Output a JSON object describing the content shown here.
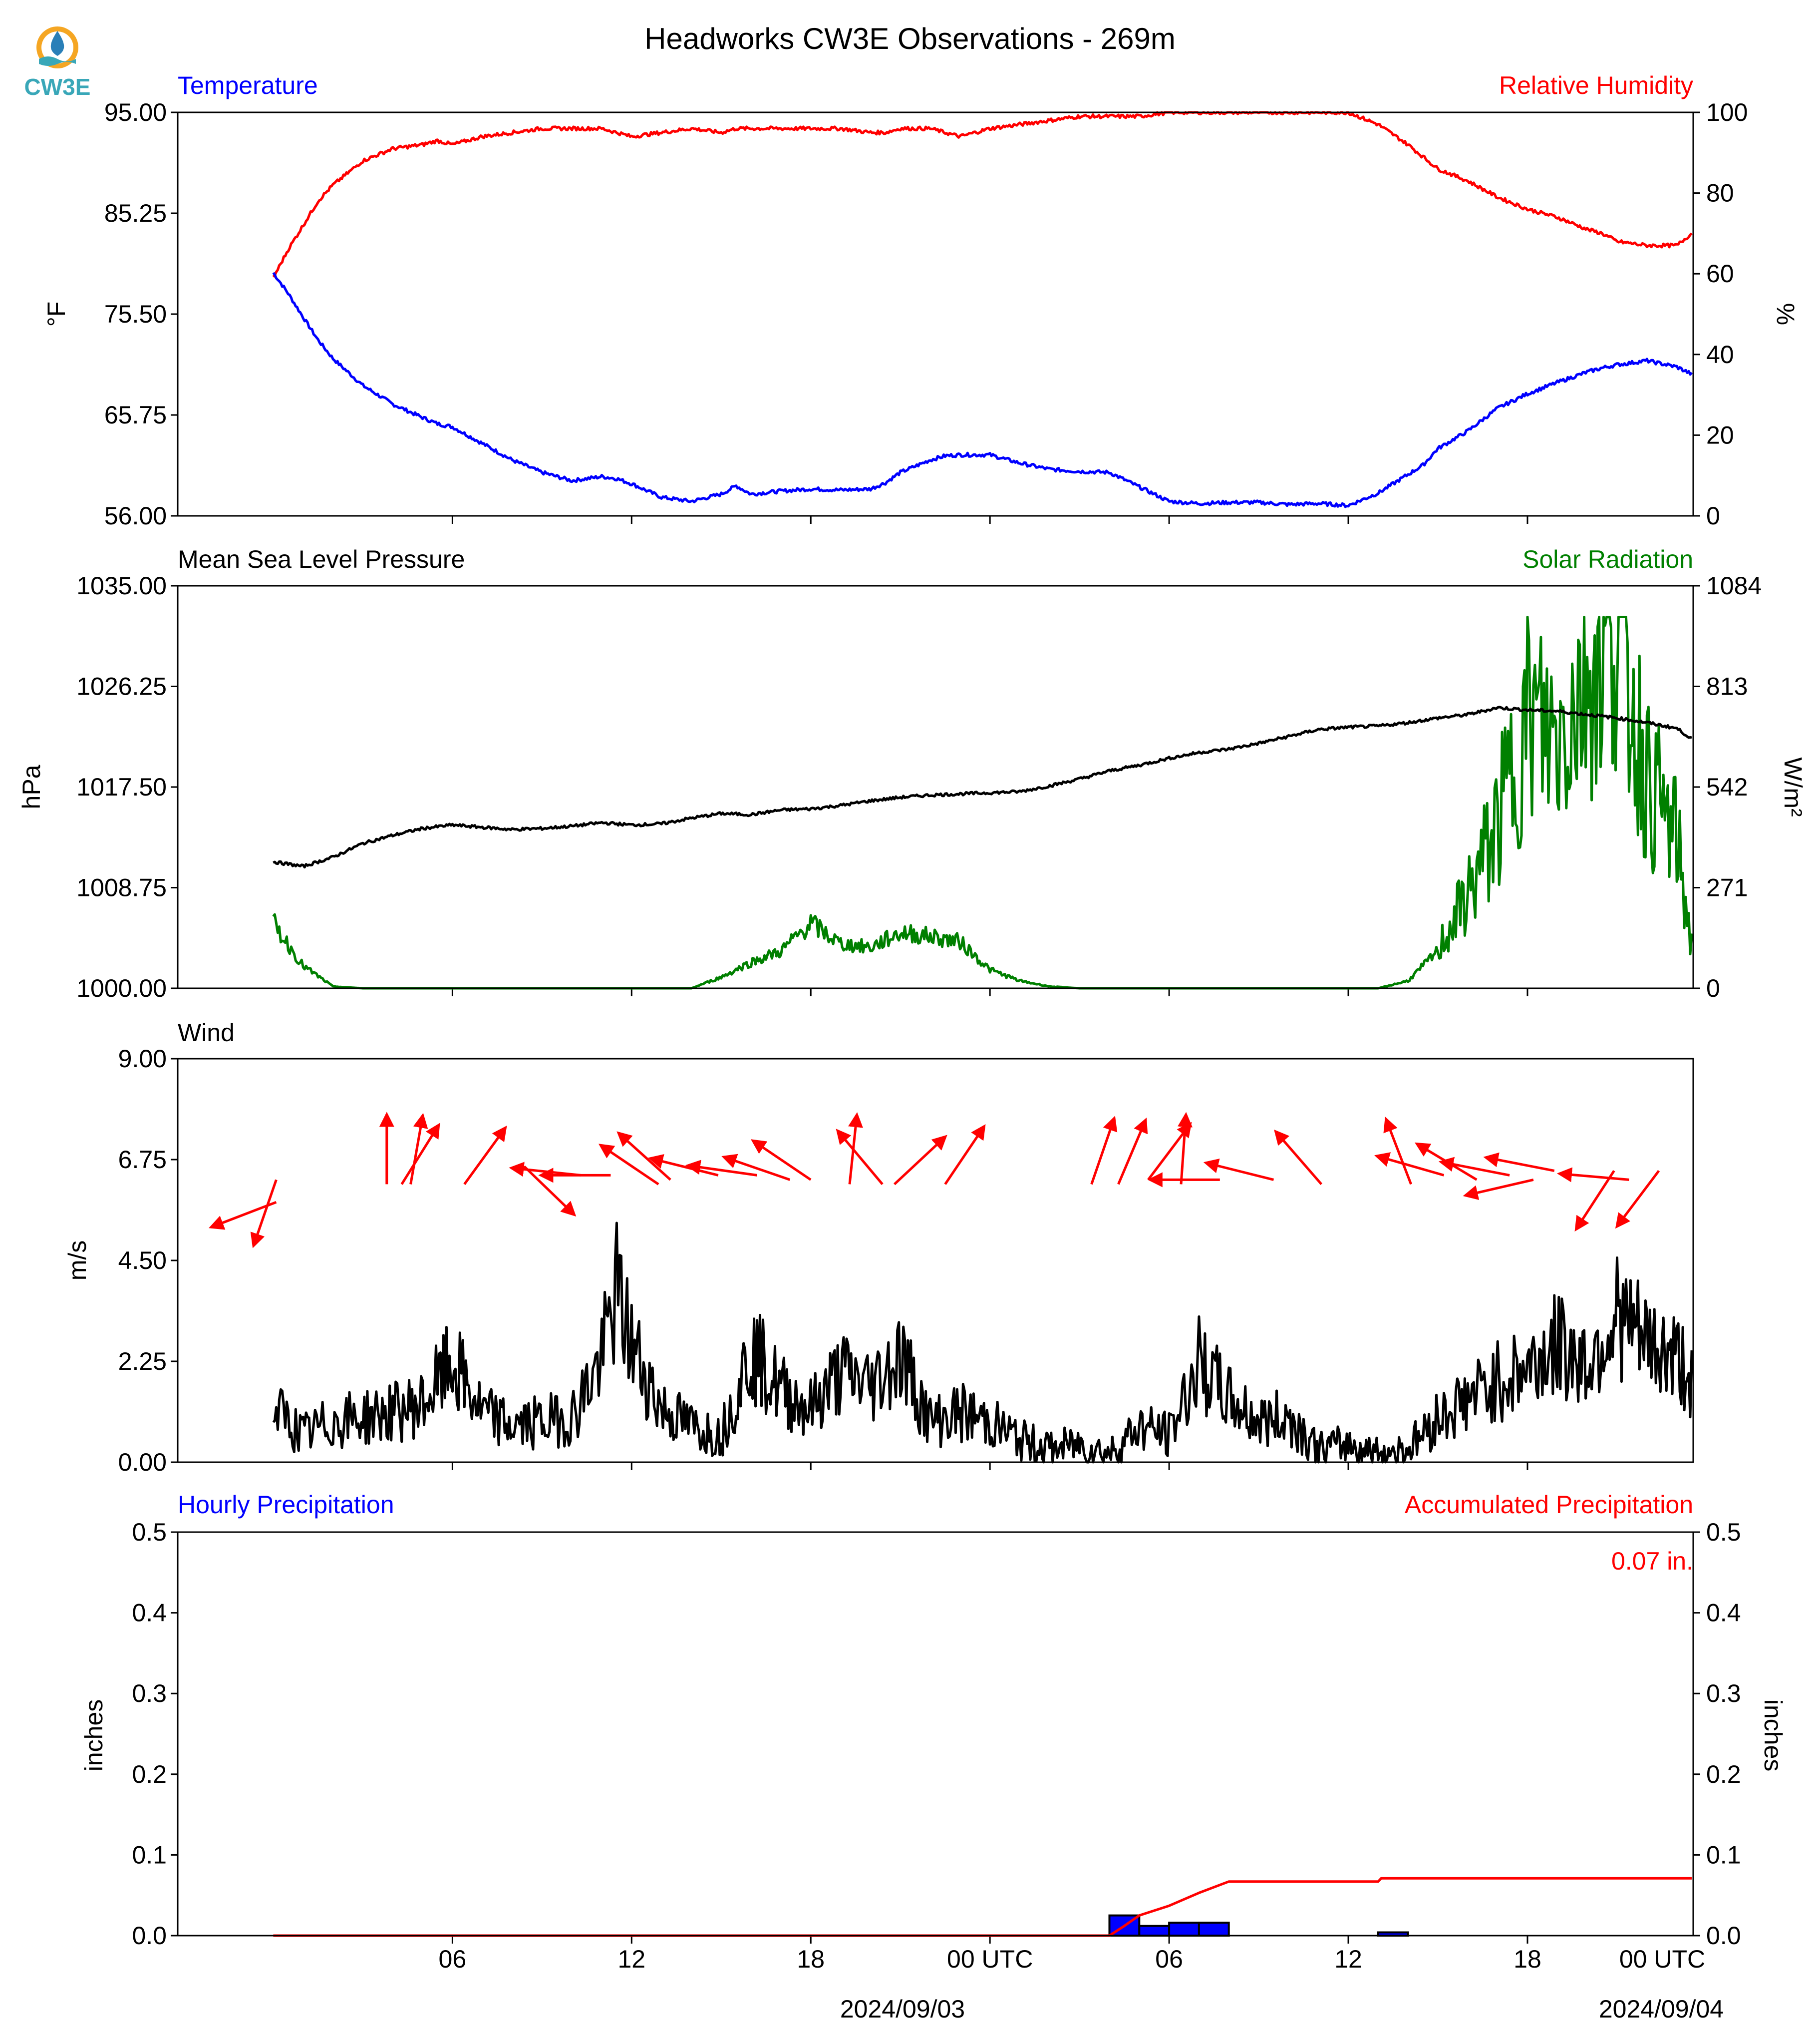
{
  "title": "Headworks CW3E Observations - 269m",
  "logo": {
    "text": "CW3E",
    "icon": "water-drop-sun-logo",
    "colors": [
      "#f5a623",
      "#2a7fb8",
      "#39a7b8"
    ]
  },
  "colors": {
    "temperature": "#0000ff",
    "humidity": "#ff0000",
    "pressure": "#000000",
    "solar": "#008000",
    "wind_speed": "#000000",
    "wind_arrow": "#ff0000",
    "hourly_bar": "#0000ff",
    "accumulated": "#ff0000"
  },
  "x_axis": {
    "tick_labels": [
      "06",
      "12",
      "18",
      "00 UTC",
      "06",
      "12",
      "18",
      "00 UTC"
    ],
    "date_labels": [
      "2024/09/03",
      "2024/09/04"
    ]
  },
  "chart_data": [
    {
      "type": "line",
      "panel": "temperature-humidity",
      "left_title": "Temperature",
      "right_title": "Relative Humidity",
      "ylabel_left": "°F",
      "ylabel_right": "%",
      "yticks_left": [
        "95.00",
        "85.25",
        "75.50",
        "65.75",
        "56.00"
      ],
      "yticks_right": [
        "100",
        "80",
        "60",
        "40",
        "20",
        "0"
      ],
      "ylim_left": [
        56,
        95
      ],
      "ylim_right": [
        0,
        100
      ],
      "x_hours": [
        0,
        0.5,
        1,
        1.5,
        2,
        3,
        4,
        5,
        5.5,
        6,
        7,
        8,
        9,
        10,
        10.5,
        11,
        11.5,
        12,
        13,
        14,
        15,
        15.5,
        16,
        17,
        18,
        19,
        20,
        20.5,
        21,
        22,
        22.5,
        23,
        24,
        25,
        26,
        27,
        28,
        29,
        30,
        31,
        32,
        33,
        34,
        35,
        36,
        37,
        38,
        38.5,
        39,
        40,
        41,
        42,
        43,
        44,
        44.5,
        45,
        46,
        47,
        47.5
      ],
      "series": [
        {
          "name": "Temperature",
          "axis": "left",
          "values": [
            79.5,
            77.5,
            75.2,
            73,
            71.2,
            68.6,
            66.8,
            65.5,
            64.9,
            64.6,
            63,
            61.4,
            60.2,
            59.4,
            59.6,
            59.8,
            59.6,
            59.1,
            57.8,
            57.4,
            58.1,
            58.9,
            58.1,
            58.4,
            58.6,
            58.5,
            58.6,
            59.2,
            60.2,
            61.4,
            61.8,
            61.9,
            61.9,
            61.1,
            60.5,
            60.3,
            60.2,
            58.8,
            57.4,
            57.2,
            57.3,
            57.3,
            57.1,
            57.2,
            57,
            58.2,
            60,
            60.9,
            62.5,
            64.2,
            66.4,
            67.8,
            68.9,
            69.9,
            70.3,
            70.6,
            71,
            70.4,
            69.7
          ]
        },
        {
          "name": "Relative Humidity",
          "axis": "right",
          "values": [
            59,
            66,
            72,
            78,
            82,
            88,
            91,
            92,
            93,
            92,
            94,
            95,
            96,
            96,
            96,
            96,
            95,
            94,
            95,
            96,
            95,
            96,
            96,
            96,
            96,
            96,
            95,
            95,
            96,
            96,
            95,
            94,
            96,
            97,
            98,
            99,
            99,
            99,
            100,
            100,
            100,
            100,
            100,
            100,
            100,
            97,
            92,
            89,
            86,
            83,
            79,
            76,
            74,
            71,
            70,
            68,
            67,
            67,
            70
          ]
        }
      ]
    },
    {
      "type": "line",
      "panel": "pressure-solar",
      "left_title": "Mean Sea Level Pressure",
      "right_title": "Solar Radiation",
      "ylabel_left": "hPa",
      "ylabel_right": "W/m²",
      "yticks_left": [
        "1035.00",
        "1026.25",
        "1017.50",
        "1008.75",
        "1000.00"
      ],
      "yticks_right": [
        "1084",
        "813",
        "542",
        "271",
        "0"
      ],
      "ylim_left": [
        1000,
        1035
      ],
      "ylim_right": [
        0,
        1084
      ],
      "x_hours": [
        0,
        1,
        2,
        3,
        4,
        5,
        6,
        7,
        8,
        9,
        10,
        11,
        12,
        13,
        14,
        15,
        16,
        17,
        18,
        19,
        20,
        21,
        22,
        23,
        24,
        25,
        26,
        27,
        28,
        29,
        30,
        31,
        32,
        33,
        34,
        35,
        36,
        37,
        38,
        39,
        40,
        41,
        42,
        43,
        44,
        45,
        46,
        47,
        47.5
      ],
      "series": [
        {
          "name": "Mean Sea Level Pressure",
          "axis": "left",
          "values": [
            1011,
            1010.6,
            1011.4,
            1012.6,
            1013.3,
            1013.9,
            1014.2,
            1014,
            1013.8,
            1013.9,
            1014.1,
            1014.4,
            1014.2,
            1014.3,
            1014.8,
            1015.2,
            1015.1,
            1015.5,
            1015.6,
            1015.9,
            1016.3,
            1016.6,
            1016.8,
            1016.9,
            1017,
            1017.1,
            1017.6,
            1018.2,
            1018.9,
            1019.4,
            1020,
            1020.5,
            1020.8,
            1021.3,
            1021.9,
            1022.5,
            1022.7,
            1022.8,
            1023.1,
            1023.5,
            1023.8,
            1024.4,
            1024.2,
            1024.1,
            1023.8,
            1023.5,
            1023.1,
            1022.6,
            1021.7
          ]
        },
        {
          "name": "Solar Radiation",
          "axis": "right",
          "values": [
            175,
            60,
            5,
            0,
            0,
            0,
            0,
            0,
            0,
            0,
            0,
            0,
            0,
            0,
            0,
            30,
            70,
            100,
            175,
            120,
            110,
            150,
            140,
            125,
            50,
            20,
            5,
            0,
            0,
            0,
            0,
            0,
            0,
            0,
            0,
            0,
            0,
            0,
            20,
            100,
            240,
            420,
            700,
            640,
            820,
            950,
            540,
            380,
            110
          ]
        }
      ]
    },
    {
      "type": "line",
      "panel": "wind",
      "left_title": "Wind",
      "ylabel_left": "m/s",
      "yticks_left": [
        "9.00",
        "6.75",
        "4.50",
        "2.25",
        "0.00"
      ],
      "ylim_left": [
        0,
        9
      ],
      "x_hours": [
        0,
        1,
        2,
        3,
        4,
        5,
        6,
        7,
        8,
        9,
        10,
        11,
        11.5,
        12,
        13,
        14,
        15,
        16,
        17,
        18,
        19,
        20,
        21,
        22,
        23,
        24,
        25,
        26,
        27,
        28,
        29,
        30,
        31,
        32,
        33,
        34,
        35,
        36,
        37,
        38,
        39,
        40,
        41,
        42,
        43,
        44,
        45,
        46,
        47,
        47.5
      ],
      "series": [
        {
          "name": "Wind Speed",
          "axis": "left",
          "values": [
            1.2,
            0.6,
            0.9,
            1.0,
            1.1,
            1.3,
            2.2,
            1.1,
            0.8,
            0.9,
            1.0,
            2.3,
            3.8,
            2.6,
            1.2,
            0.8,
            0.6,
            2.5,
            1.6,
            1.2,
            2.0,
            1.7,
            2.4,
            0.9,
            1.1,
            0.9,
            0.5,
            0.3,
            0.4,
            0.2,
            0.8,
            0.6,
            2.2,
            1.4,
            0.9,
            1.0,
            0.3,
            0.4,
            0.2,
            0.3,
            1.0,
            1.4,
            1.8,
            2.1,
            2.6,
            2.2,
            3.3,
            2.6,
            2.3,
            1.9
          ]
        }
      ],
      "arrows": [
        {
          "hour": 0.1,
          "speed": 6.3,
          "dir_deg": 19
        },
        {
          "hour": 0.1,
          "speed": 5.8,
          "dir_deg": 69
        },
        {
          "hour": 3.8,
          "speed": 6.2,
          "dir_deg": 180
        },
        {
          "hour": 4.3,
          "speed": 6.2,
          "dir_deg": 212
        },
        {
          "hour": 4.6,
          "speed": 6.2,
          "dir_deg": 190
        },
        {
          "hour": 6.4,
          "speed": 6.2,
          "dir_deg": 216
        },
        {
          "hour": 8.4,
          "speed": 6.6,
          "dir_deg": 314
        },
        {
          "hour": 10.3,
          "speed": 6.4,
          "dir_deg": 96
        },
        {
          "hour": 11.3,
          "speed": 6.4,
          "dir_deg": 90
        },
        {
          "hour": 12.9,
          "speed": 6.2,
          "dir_deg": 124
        },
        {
          "hour": 13.3,
          "speed": 6.3,
          "dir_deg": 132
        },
        {
          "hour": 14.9,
          "speed": 6.4,
          "dir_deg": 104
        },
        {
          "hour": 16.2,
          "speed": 6.4,
          "dir_deg": 98
        },
        {
          "hour": 17.3,
          "speed": 6.3,
          "dir_deg": 109
        },
        {
          "hour": 18.0,
          "speed": 6.3,
          "dir_deg": 124
        },
        {
          "hour": 19.3,
          "speed": 6.2,
          "dir_deg": 186
        },
        {
          "hour": 20.4,
          "speed": 6.2,
          "dir_deg": 140
        },
        {
          "hour": 20.8,
          "speed": 6.2,
          "dir_deg": 227
        },
        {
          "hour": 22.5,
          "speed": 6.2,
          "dir_deg": 214
        },
        {
          "hour": 27.4,
          "speed": 6.2,
          "dir_deg": 199
        },
        {
          "hour": 28.3,
          "speed": 6.2,
          "dir_deg": 203
        },
        {
          "hour": 29.3,
          "speed": 6.3,
          "dir_deg": 217
        },
        {
          "hour": 30.4,
          "speed": 6.2,
          "dir_deg": 184
        },
        {
          "hour": 31.7,
          "speed": 6.3,
          "dir_deg": 90
        },
        {
          "hour": 33.5,
          "speed": 6.3,
          "dir_deg": 104
        },
        {
          "hour": 35.1,
          "speed": 6.2,
          "dir_deg": 139
        },
        {
          "hour": 38.1,
          "speed": 6.2,
          "dir_deg": 159
        },
        {
          "hour": 39.2,
          "speed": 6.4,
          "dir_deg": 106
        },
        {
          "hour": 40.3,
          "speed": 6.3,
          "dir_deg": 121
        },
        {
          "hour": 41.4,
          "speed": 6.4,
          "dir_deg": 101
        },
        {
          "hour": 42.2,
          "speed": 6.3,
          "dir_deg": 77
        },
        {
          "hour": 42.9,
          "speed": 6.5,
          "dir_deg": 101
        },
        {
          "hour": 44.9,
          "speed": 6.5,
          "dir_deg": 33
        },
        {
          "hour": 45.4,
          "speed": 6.3,
          "dir_deg": 95
        },
        {
          "hour": 46.4,
          "speed": 6.5,
          "dir_deg": 37
        }
      ]
    },
    {
      "type": "bar",
      "panel": "precipitation",
      "left_title": "Hourly Precipitation",
      "right_title": "Accumulated Precipitation",
      "ylabel_left": "inches",
      "ylabel_right": "inches",
      "yticks_left": [
        "0.5",
        "0.4",
        "0.3",
        "0.2",
        "0.1",
        "0.0"
      ],
      "yticks_right": [
        "0.5",
        "0.4",
        "0.3",
        "0.2",
        "0.1",
        "0.0"
      ],
      "ylim_left": [
        0,
        0.5
      ],
      "annotation": "0.07 in.",
      "bars": [
        {
          "hour": 28,
          "value": 0.025
        },
        {
          "hour": 29,
          "value": 0.012
        },
        {
          "hour": 30,
          "value": 0.016
        },
        {
          "hour": 31,
          "value": 0.016
        },
        {
          "hour": 37,
          "value": 0.004
        }
      ],
      "accumulated": {
        "x_hours": [
          0,
          28,
          28.5,
          29,
          30,
          31,
          32,
          37,
          37.1,
          47.5
        ],
        "values": [
          0,
          0,
          0.012,
          0.025,
          0.037,
          0.053,
          0.067,
          0.067,
          0.071,
          0.071
        ]
      }
    }
  ]
}
